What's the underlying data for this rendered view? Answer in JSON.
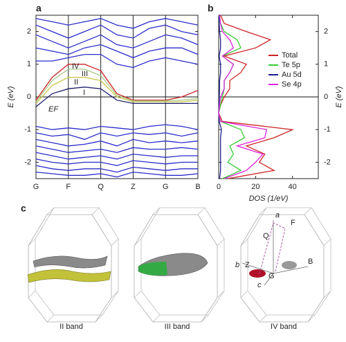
{
  "chart_data": [
    {
      "type": "line",
      "panel": "a",
      "y_label": "E (eV)",
      "y_axis_side": "left",
      "grid": "x",
      "reference_line": 0,
      "annotation": "EF",
      "band_labels": [
        {
          "text": "IV",
          "color": "#cc2222"
        },
        {
          "text": "III",
          "color": "#a9c98a"
        },
        {
          "text": "II",
          "color": "#c8c84a"
        },
        {
          "text": "I",
          "color": "#1c1c6e"
        }
      ],
      "xlim": [
        0,
        5
      ],
      "ylim": [
        -2.5,
        2.5
      ],
      "xticks": [
        {
          "value": 0,
          "label": "G"
        },
        {
          "value": 1,
          "label": "F"
        },
        {
          "value": 2,
          "label": "Q"
        },
        {
          "value": 3,
          "label": "Z"
        },
        {
          "value": 4,
          "label": "G"
        },
        {
          "value": 5,
          "label": "B"
        }
      ],
      "yticks": [
        -2,
        -1,
        0,
        1,
        2
      ],
      "x": [
        0,
        0.5,
        1,
        1.5,
        2,
        2.5,
        3,
        3.5,
        4,
        4.5,
        5
      ],
      "series": [
        {
          "color": "#2b2bcc",
          "values": [
            2.4,
            2.3,
            2.2,
            2.3,
            2.4,
            2.2,
            2.1,
            2.3,
            2.4,
            2.3,
            2.2
          ]
        },
        {
          "color": "#2b2bcc",
          "values": [
            2.2,
            2.0,
            1.8,
            2.0,
            2.2,
            1.9,
            1.8,
            2.1,
            2.2,
            2.0,
            1.9
          ]
        },
        {
          "color": "#2b2bcc",
          "values": [
            1.9,
            1.7,
            1.5,
            1.7,
            1.9,
            1.6,
            1.5,
            1.7,
            1.9,
            1.8,
            1.6
          ]
        },
        {
          "color": "#2b2bcc",
          "values": [
            1.5,
            1.4,
            1.3,
            1.5,
            1.6,
            1.4,
            1.2,
            1.4,
            1.5,
            1.5,
            1.3
          ]
        },
        {
          "color": "#2b2bcc",
          "values": [
            1.1,
            1.1,
            1.2,
            1.3,
            1.3,
            1.0,
            0.9,
            1.1,
            1.2,
            1.1,
            1.0
          ]
        },
        {
          "color": "#cc2222",
          "values": [
            -0.1,
            0.6,
            1.0,
            1.0,
            0.8,
            0.1,
            -0.1,
            -0.1,
            -0.1,
            0.0,
            0.2
          ]
        },
        {
          "color": "#a9c98a",
          "values": [
            -0.15,
            0.5,
            0.85,
            0.85,
            0.65,
            0.05,
            -0.12,
            -0.12,
            -0.12,
            -0.1,
            -0.05
          ]
        },
        {
          "color": "#c8c84a",
          "values": [
            -0.2,
            0.35,
            0.6,
            0.6,
            0.5,
            0.0,
            -0.15,
            -0.15,
            -0.15,
            -0.15,
            -0.1
          ]
        },
        {
          "color": "#1c1c6e",
          "values": [
            -0.3,
            0.1,
            0.25,
            0.3,
            0.25,
            -0.1,
            -0.2,
            -0.2,
            -0.2,
            -0.2,
            -0.2
          ]
        },
        {
          "color": "#2b2bcc",
          "values": [
            -0.9,
            -1.0,
            -0.95,
            -1.0,
            -0.9,
            -0.95,
            -1.0,
            -0.9,
            -0.85,
            -0.9,
            -1.0
          ]
        },
        {
          "color": "#2b2bcc",
          "values": [
            -1.1,
            -1.2,
            -1.15,
            -1.3,
            -1.1,
            -1.2,
            -1.1,
            -1.15,
            -1.1,
            -1.2,
            -1.1
          ]
        },
        {
          "color": "#2b2bcc",
          "values": [
            -1.3,
            -1.4,
            -1.5,
            -1.45,
            -1.35,
            -1.5,
            -1.3,
            -1.4,
            -1.35,
            -1.4,
            -1.35
          ]
        },
        {
          "color": "#2b2bcc",
          "values": [
            -1.5,
            -1.6,
            -1.7,
            -1.65,
            -1.6,
            -1.7,
            -1.55,
            -1.6,
            -1.6,
            -1.55,
            -1.6
          ]
        },
        {
          "color": "#2b2bcc",
          "values": [
            -1.7,
            -1.8,
            -1.9,
            -1.85,
            -1.8,
            -1.9,
            -1.75,
            -1.8,
            -1.85,
            -1.8,
            -1.8
          ]
        },
        {
          "color": "#2b2bcc",
          "values": [
            -1.9,
            -2.0,
            -2.05,
            -2.0,
            -2.0,
            -2.1,
            -1.95,
            -2.0,
            -2.05,
            -2.0,
            -2.0
          ]
        },
        {
          "color": "#2b2bcc",
          "values": [
            -2.1,
            -2.2,
            -2.25,
            -2.2,
            -2.2,
            -2.3,
            -2.15,
            -2.2,
            -2.25,
            -2.2,
            -2.2
          ]
        },
        {
          "color": "#2b2bcc",
          "values": [
            -2.3,
            -2.35,
            -2.4,
            -2.4,
            -2.35,
            -2.45,
            -2.3,
            -2.35,
            -2.4,
            -2.4,
            -2.35
          ]
        }
      ]
    },
    {
      "type": "line",
      "orientation": "horizontal",
      "panel": "b",
      "x_label": "DOS (1/eV)",
      "y_label": "E (eV)",
      "y_axis_side": "right",
      "reference_line": 0,
      "legend": "upper right",
      "xlim": [
        0,
        54
      ],
      "ylim": [
        -2.5,
        2.5
      ],
      "xticks": [
        0,
        20,
        40
      ],
      "yticks": [
        -2,
        -1,
        0,
        1,
        2
      ],
      "y": [
        -2.5,
        -2.25,
        -2.0,
        -1.75,
        -1.5,
        -1.25,
        -1.0,
        -0.75,
        -0.5,
        -0.25,
        0,
        0.25,
        0.5,
        0.75,
        1.0,
        1.25,
        1.5,
        1.75,
        2.0,
        2.25,
        2.5
      ],
      "series": [
        {
          "name": "Total",
          "color": "#cc2222",
          "values": [
            5,
            30,
            22,
            25,
            15,
            30,
            40,
            2,
            0,
            1,
            3,
            6,
            6,
            12,
            15,
            3,
            20,
            28,
            15,
            3,
            1
          ]
        },
        {
          "name": "Te 5p",
          "color": "#33cc33",
          "values": [
            2,
            12,
            5,
            8,
            6,
            14,
            12,
            1,
            0,
            1,
            2,
            3,
            3,
            6,
            8,
            2,
            12,
            10,
            3,
            1,
            0
          ]
        },
        {
          "name": "Au 5d",
          "color": "#1c1c8e",
          "values": [
            0.5,
            1,
            1,
            1,
            1,
            1,
            1.5,
            0.3,
            0,
            0.2,
            0.3,
            0.5,
            0.5,
            1,
            1,
            0.3,
            1,
            1,
            0.5,
            0.3,
            0.2
          ]
        },
        {
          "name": "Se 4p",
          "color": "#dd22dd",
          "values": [
            3,
            15,
            20,
            24,
            10,
            25,
            26,
            1,
            0,
            0.5,
            1,
            3,
            3,
            6,
            8,
            2,
            8,
            6,
            2,
            1,
            0.5
          ]
        }
      ]
    }
  ],
  "fermi_surfaces": {
    "panel": "c",
    "captions": [
      "II band",
      "III band",
      "IV band"
    ],
    "vectors": [
      "a",
      "b",
      "c"
    ],
    "points": [
      "F",
      "Q",
      "Z",
      "G",
      "B"
    ]
  }
}
